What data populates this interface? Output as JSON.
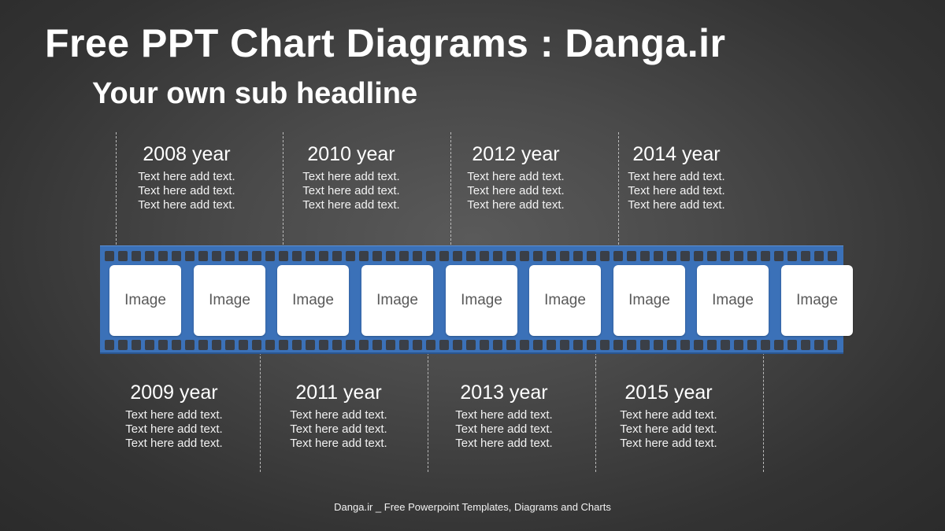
{
  "title": "Free PPT Chart Diagrams : Danga.ir",
  "subtitle": "Your own sub headline",
  "top_labels": [
    {
      "year": "2008 year",
      "lines": [
        "Text here add text.",
        "Text here add text.",
        "Text here add text."
      ]
    },
    {
      "year": "2010 year",
      "lines": [
        "Text here add text.",
        "Text here add text.",
        "Text here add text."
      ]
    },
    {
      "year": "2012 year",
      "lines": [
        "Text here add text.",
        "Text here add text.",
        "Text here add text."
      ]
    },
    {
      "year": "2014 year",
      "lines": [
        "Text here add text.",
        "Text here add text.",
        "Text here add text."
      ]
    }
  ],
  "bottom_labels": [
    {
      "year": "2009 year",
      "lines": [
        "Text here add text.",
        "Text here add text.",
        "Text here add text."
      ]
    },
    {
      "year": "2011 year",
      "lines": [
        "Text here add text.",
        "Text here add text.",
        "Text here add text."
      ]
    },
    {
      "year": "2013 year",
      "lines": [
        "Text here add text.",
        "Text here add text.",
        "Text here add text."
      ]
    },
    {
      "year": "2015 year",
      "lines": [
        "Text here add text.",
        "Text here add text.",
        "Text here add text."
      ]
    }
  ],
  "frames": [
    "Image",
    "Image",
    "Image",
    "Image",
    "Image",
    "Image",
    "Image",
    "Image",
    "Image"
  ],
  "footer": "Danga.ir _ Free Powerpoint Templates, Diagrams and Charts",
  "colors": {
    "film": "#3b71b8",
    "hole": "#3a3f47",
    "frame": "#ffffff",
    "background": "#4a4a4a"
  }
}
